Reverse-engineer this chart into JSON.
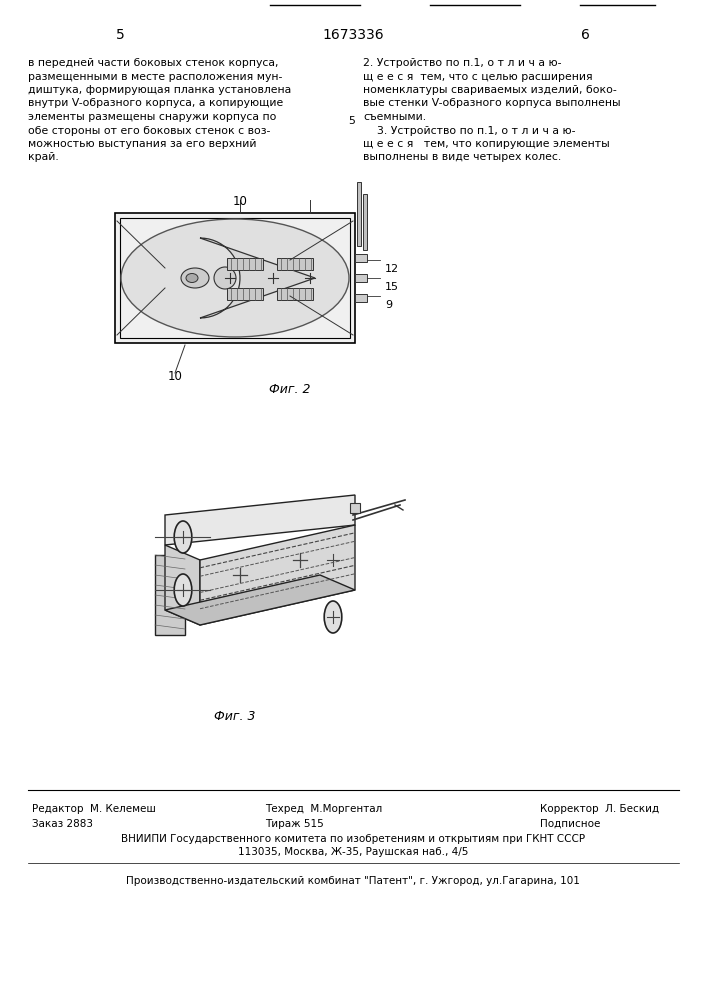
{
  "page_num_left": "5",
  "page_num_center": "1673336",
  "page_num_right": "6",
  "left_text": [
    "в передней части боковых стенок корпуса,",
    "размещенными в месте расположения мун-",
    "диштука, формирующая планка установлена",
    "внутри V-образного корпуса, а копирующие",
    "элементы размещены снаружи корпуса по",
    "обе стороны от его боковых стенок с воз-",
    "можностью выступания за его верхний",
    "край."
  ],
  "right_text": [
    "2. Устройство по п.1, о т л и ч а ю-",
    "щ е е с я  тем, что с целью расширения",
    "номенклатуры свариваемых изделий, боко-",
    "вые стенки V-образного корпуса выполнены",
    "съемными.",
    "    3. Устройство по п.1, о т л и ч а ю-",
    "щ е е с я   тем, что копирующие элементы",
    "выполнены в виде четырех колес."
  ],
  "mid_number": "5",
  "fig2_label": "Фиг. 2",
  "fig3_label": "Фиг. 3",
  "footer_editor": "Редактор  М. Келемеш",
  "footer_tech": "Техред  М.Моргентал",
  "footer_corrector": "Корректор  Л. Бескид",
  "footer_order": "Заказ 2883",
  "footer_tirazh": "Тираж 515",
  "footer_podpisnoe": "Подписное",
  "footer_vniiipi": "ВНИИПИ Государственного комитета по изобретениям и открытиям при ГКНТ СССР",
  "footer_address": "113035, Москва, Ж-35, Раушская наб., 4/5",
  "footer_publisher": "Производственно-издательский комбинат \"Патент\", г. Ужгород, ул.Гагарина, 101",
  "bg_color": "#ffffff"
}
